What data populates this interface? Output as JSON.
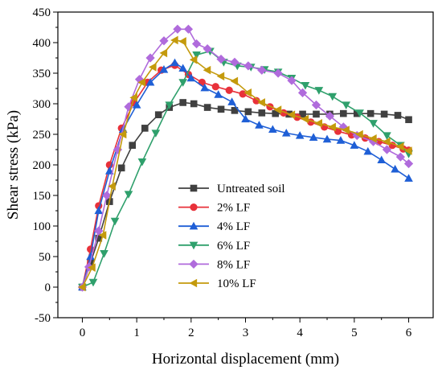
{
  "chart_data": {
    "type": "line",
    "xlabel": "Horizontal displacement (mm)",
    "ylabel": "Shear stress (kPa)",
    "xlim": [
      -0.45,
      6.45
    ],
    "ylim": [
      -50,
      450
    ],
    "xticks": [
      0,
      1,
      2,
      3,
      4,
      5,
      6
    ],
    "yticks": [
      -50,
      0,
      50,
      100,
      150,
      200,
      250,
      300,
      350,
      400,
      450
    ],
    "grid": false,
    "legend_position": "bottom-left of plot area, inside",
    "series": [
      {
        "name": "Untreated soil",
        "color": "#404040",
        "marker": "square",
        "x": [
          0,
          0.15,
          0.3,
          0.5,
          0.72,
          0.92,
          1.15,
          1.4,
          1.6,
          1.85,
          2.05,
          2.3,
          2.55,
          2.8,
          3.05,
          3.3,
          3.55,
          3.8,
          4.05,
          4.3,
          4.55,
          4.8,
          5.05,
          5.3,
          5.55,
          5.8,
          6.0
        ],
        "y": [
          0,
          40,
          80,
          140,
          195,
          232,
          260,
          282,
          294,
          302,
          300,
          294,
          291,
          289,
          287,
          285,
          284,
          283,
          283,
          283,
          283,
          284,
          284,
          284,
          283,
          281,
          274
        ]
      },
      {
        "name": "2% LF",
        "color": "#e8313a",
        "marker": "circle",
        "x": [
          0,
          0.15,
          0.3,
          0.5,
          0.72,
          0.95,
          1.2,
          1.45,
          1.7,
          1.95,
          2.2,
          2.45,
          2.7,
          2.95,
          3.2,
          3.45,
          3.7,
          3.95,
          4.2,
          4.45,
          4.7,
          4.95,
          5.2,
          5.45,
          5.7,
          5.9,
          6.0
        ],
        "y": [
          0,
          62,
          133,
          200,
          260,
          302,
          335,
          355,
          363,
          348,
          335,
          328,
          322,
          316,
          305,
          295,
          285,
          278,
          270,
          262,
          255,
          249,
          244,
          238,
          232,
          226,
          224
        ]
      },
      {
        "name": "4% LF",
        "color": "#1f5fd6",
        "marker": "triangle-up",
        "x": [
          0,
          0.15,
          0.3,
          0.5,
          0.75,
          1.0,
          1.25,
          1.5,
          1.7,
          1.85,
          2.0,
          2.25,
          2.5,
          2.75,
          3.0,
          3.25,
          3.5,
          3.75,
          4.0,
          4.25,
          4.5,
          4.75,
          5.0,
          5.25,
          5.5,
          5.75,
          6.0
        ],
        "y": [
          0,
          50,
          125,
          190,
          258,
          298,
          335,
          356,
          367,
          358,
          342,
          326,
          315,
          303,
          275,
          265,
          258,
          252,
          248,
          245,
          242,
          240,
          232,
          222,
          208,
          193,
          178
        ]
      },
      {
        "name": "6% LF",
        "color": "#2fa06c",
        "marker": "triangle-down",
        "x": [
          0,
          0.2,
          0.4,
          0.6,
          0.85,
          1.1,
          1.35,
          1.6,
          1.85,
          2.1,
          2.35,
          2.6,
          2.85,
          3.1,
          3.35,
          3.6,
          3.85,
          4.1,
          4.35,
          4.6,
          4.85,
          5.1,
          5.35,
          5.6,
          5.85,
          6.0
        ],
        "y": [
          0,
          8,
          55,
          108,
          152,
          205,
          252,
          298,
          335,
          380,
          386,
          368,
          362,
          360,
          356,
          352,
          342,
          330,
          322,
          312,
          298,
          285,
          268,
          248,
          232,
          218
        ]
      },
      {
        "name": "8% LF",
        "color": "#b06bdc",
        "marker": "diamond",
        "x": [
          0,
          0.12,
          0.3,
          0.45,
          0.65,
          0.85,
          1.05,
          1.25,
          1.5,
          1.75,
          1.95,
          2.1,
          2.3,
          2.55,
          2.8,
          3.05,
          3.3,
          3.6,
          3.85,
          4.05,
          4.3,
          4.55,
          4.8,
          5.05,
          5.35,
          5.6,
          5.85,
          6.0
        ],
        "y": [
          0,
          33,
          92,
          150,
          225,
          295,
          340,
          375,
          403,
          422,
          422,
          398,
          390,
          373,
          368,
          362,
          355,
          350,
          338,
          318,
          298,
          280,
          262,
          248,
          238,
          225,
          213,
          202
        ]
      },
      {
        "name": "10% LF",
        "color": "#c49a0c",
        "marker": "triangle-left",
        "x": [
          0,
          0.18,
          0.38,
          0.55,
          0.75,
          0.95,
          1.1,
          1.3,
          1.5,
          1.7,
          1.85,
          2.05,
          2.3,
          2.55,
          2.8,
          3.05,
          3.3,
          3.6,
          3.85,
          4.1,
          4.35,
          4.6,
          4.85,
          5.1,
          5.35,
          5.6,
          5.85,
          6.0
        ],
        "y": [
          0,
          32,
          85,
          165,
          250,
          310,
          335,
          360,
          383,
          404,
          402,
          372,
          355,
          345,
          337,
          318,
          302,
          290,
          282,
          275,
          268,
          262,
          257,
          250,
          243,
          238,
          230,
          223
        ]
      }
    ]
  }
}
